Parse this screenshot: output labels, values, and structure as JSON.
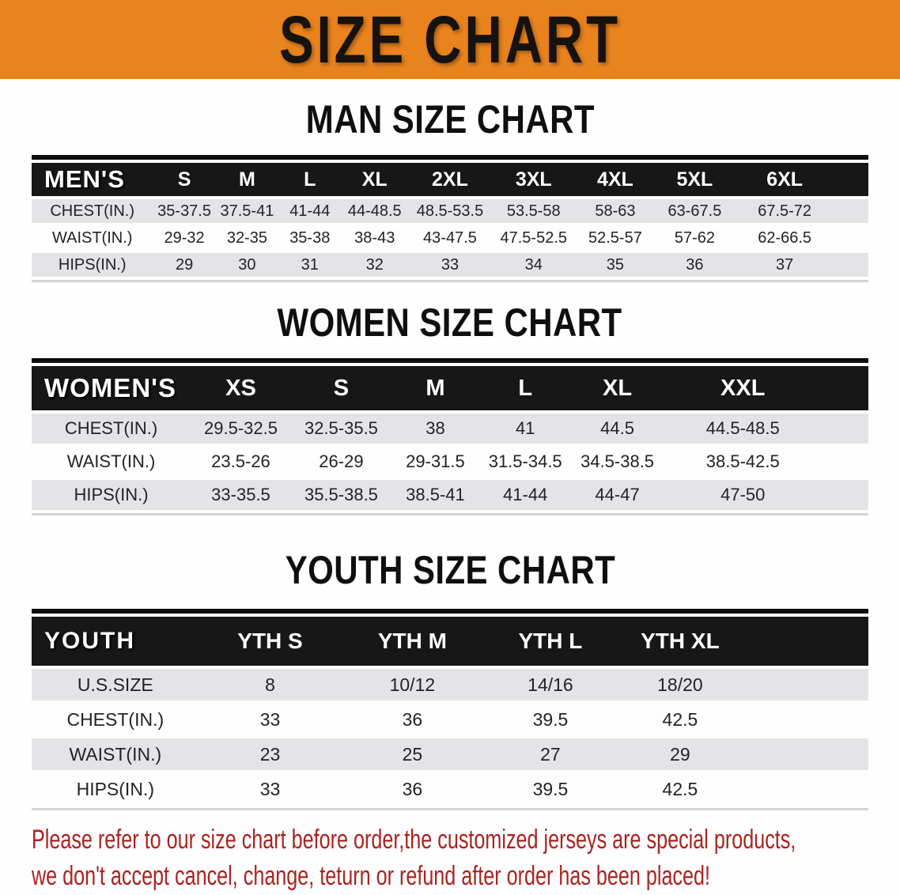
{
  "banner": {
    "title": "SIZE CHART"
  },
  "sections": [
    {
      "id": "men",
      "heading": "MAN SIZE CHART",
      "table": {
        "header_label": "MEN'S",
        "columns": [
          "S",
          "M",
          "L",
          "XL",
          "2XL",
          "3XL",
          "4XL",
          "5XL",
          "6XL"
        ],
        "rows": [
          {
            "label": "CHEST(IN.)",
            "values": [
              "35-37.5",
              "37.5-41",
              "41-44",
              "44-48.5",
              "48.5-53.5",
              "53.5-58",
              "58-63",
              "63-67.5",
              "67.5-72"
            ]
          },
          {
            "label": "WAIST(IN.)",
            "values": [
              "29-32",
              "32-35",
              "35-38",
              "38-43",
              "43-47.5",
              "47.5-52.5",
              "52.5-57",
              "57-62",
              "62-66.5"
            ]
          },
          {
            "label": "HIPS(IN.)",
            "values": [
              "29",
              "30",
              "31",
              "32",
              "33",
              "34",
              "35",
              "36",
              "37"
            ]
          }
        ]
      }
    },
    {
      "id": "women",
      "heading": "WOMEN SIZE CHART",
      "table": {
        "header_label": "WOMEN'S",
        "columns": [
          "XS",
          "S",
          "M",
          "L",
          "XL",
          "XXL"
        ],
        "rows": [
          {
            "label": "CHEST(IN.)",
            "values": [
              "29.5-32.5",
              "32.5-35.5",
              "38",
              "41",
              "44.5",
              "44.5-48.5"
            ]
          },
          {
            "label": "WAIST(IN.)",
            "values": [
              "23.5-26",
              "26-29",
              "29-31.5",
              "31.5-34.5",
              "34.5-38.5",
              "38.5-42.5"
            ]
          },
          {
            "label": "HIPS(IN.)",
            "values": [
              "33-35.5",
              "35.5-38.5",
              "38.5-41",
              "41-44",
              "44-47",
              "47-50"
            ]
          }
        ]
      }
    },
    {
      "id": "youth",
      "heading": "YOUTH SIZE CHART",
      "table": {
        "header_label": "YOUTH",
        "columns": [
          "YTH S",
          "YTH M",
          "YTH L",
          "YTH XL"
        ],
        "rows": [
          {
            "label": "U.S.SIZE",
            "values": [
              "8",
              "10/12",
              "14/16",
              "18/20"
            ]
          },
          {
            "label": "CHEST(IN.)",
            "values": [
              "33",
              "36",
              "39.5",
              "42.5"
            ]
          },
          {
            "label": "WAIST(IN.)",
            "values": [
              "23",
              "25",
              "27",
              "29"
            ]
          },
          {
            "label": "HIPS(IN.)",
            "values": [
              "33",
              "36",
              "39.5",
              "42.5"
            ]
          }
        ]
      }
    }
  ],
  "footer": {
    "line1": "Please refer to our size chart before order,the customized jerseys are special products,",
    "line2": "we don't accept cancel, change, teturn or refund after order has been placed!"
  },
  "colors": {
    "banner_bg": "#e8831e",
    "banner_text": "#161210",
    "table_header_bg": "#171717",
    "row_shade": "#e4e4e6",
    "disclaimer_red": "#a92320"
  }
}
